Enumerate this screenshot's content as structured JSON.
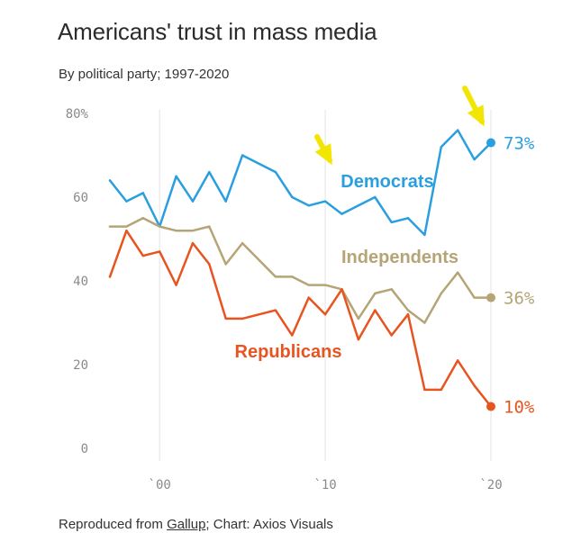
{
  "title": "Americans' trust in mass media",
  "subtitle": "By political party; 1997-2020",
  "footer": {
    "prefix": "Reproduced from ",
    "source_link": "Gallup",
    "suffix": "; Chart: Axios Visuals"
  },
  "chart_data": {
    "type": "line",
    "title": "Americans' trust in mass media",
    "subtitle": "By political party; 1997-2020",
    "xlabel": "",
    "ylabel": "",
    "ylim": [
      0,
      80
    ],
    "xlim": [
      1997,
      2020
    ],
    "y_ticks": [
      0,
      20,
      40,
      60,
      80
    ],
    "y_tick_labels": [
      "0",
      "20",
      "40",
      "60",
      "80%"
    ],
    "x_ticks": [
      2000,
      2010,
      2020
    ],
    "x_tick_labels": [
      "`00",
      "`10",
      "`20"
    ],
    "grid": "vertical",
    "x": [
      1997,
      1998,
      1999,
      2000,
      2001,
      2002,
      2003,
      2004,
      2005,
      2007,
      2008,
      2009,
      2010,
      2011,
      2012,
      2013,
      2014,
      2015,
      2016,
      2017,
      2018,
      2019,
      2020
    ],
    "series": [
      {
        "name": "Democrats",
        "color": "#2a9fe0",
        "values": [
          64,
          59,
          61,
          53,
          65,
          59,
          66,
          59,
          70,
          66,
          60,
          58,
          59,
          56,
          58,
          60,
          54,
          55,
          51,
          72,
          76,
          69,
          73
        ],
        "end_label": "73%"
      },
      {
        "name": "Independents",
        "color": "#b5a475",
        "values": [
          53,
          53,
          55,
          53,
          52,
          52,
          53,
          44,
          49,
          41,
          41,
          39,
          39,
          38,
          31,
          37,
          38,
          33,
          30,
          37,
          42,
          36,
          36
        ],
        "end_label": "36%"
      },
      {
        "name": "Republicans",
        "color": "#e8541f",
        "values": [
          41,
          52,
          46,
          47,
          39,
          49,
          44,
          31,
          31,
          33,
          27,
          36,
          32,
          38,
          26,
          33,
          27,
          32,
          14,
          14,
          21,
          15,
          10
        ],
        "end_label": "10%"
      }
    ],
    "annotations": [
      {
        "type": "arrow",
        "color": "#f2e600",
        "points_to": "Democrats label"
      },
      {
        "type": "arrow",
        "color": "#f2e600",
        "points_to": "Democrats 2020 endpoint"
      }
    ]
  }
}
